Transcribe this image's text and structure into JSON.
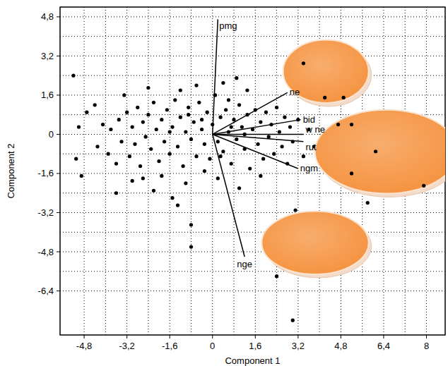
{
  "chart_data": {
    "type": "scatter",
    "x_label": "Component 1",
    "y_label": "Component 2",
    "xlim": [
      -5.7,
      8.7
    ],
    "ylim": [
      -8.2,
      5.2
    ],
    "xticks": [
      {
        "value": -4.8,
        "label": "-4,8"
      },
      {
        "value": -3.2,
        "label": "-3,2"
      },
      {
        "value": -1.6,
        "label": "-1,6"
      },
      0,
      {
        "value": 1.6,
        "label": "1,6"
      },
      {
        "value": 3.2,
        "label": "3,2"
      },
      {
        "value": 4.8,
        "label": "4,8"
      },
      {
        "value": 6.4,
        "label": "6,4"
      },
      8
    ],
    "yticks": [
      {
        "value": 4.8,
        "label": "4,8"
      },
      {
        "value": 3.2,
        "label": "3,2"
      },
      {
        "value": 1.6,
        "label": "1,6"
      },
      0,
      {
        "value": -1.6,
        "label": "-1,6"
      },
      {
        "value": -3.2,
        "label": "-3,2"
      },
      {
        "value": -4.8,
        "label": "-4,8"
      },
      {
        "value": -6.4,
        "label": "-6,4"
      }
    ],
    "grid": true,
    "color": "#000000",
    "marker": "circle",
    "x": [
      -5.2,
      -4.7,
      -3.3,
      -5.1,
      -5.0,
      -4.9,
      3.4,
      4.2,
      4.9,
      5.2,
      4.7,
      6.1,
      5.2,
      5.8,
      7.9,
      3.1,
      2.4,
      3.0,
      -0.8,
      -0.8,
      -1.3,
      -3.0,
      -2.6,
      0.4,
      -4.3,
      -4.1,
      -3.9,
      -3.8,
      -3.6,
      -3.5,
      -3.4,
      -3.2,
      -3.1,
      -3.0,
      -2.9,
      -2.8,
      -2.7,
      -2.6,
      -2.5,
      -2.4,
      -2.3,
      -2.2,
      -2.1,
      -2.0,
      -1.9,
      -1.8,
      -1.7,
      -1.6,
      -1.5,
      -1.4,
      -1.3,
      -1.2,
      -1.1,
      -1.0,
      -0.9,
      -0.8,
      -0.7,
      -0.6,
      -0.5,
      -0.4,
      -0.3,
      -0.2,
      -0.1,
      0.0,
      0.1,
      0.2,
      0.3,
      0.4,
      0.5,
      0.6,
      0.7,
      0.8,
      0.9,
      1.0,
      1.1,
      1.2,
      1.3,
      1.4,
      1.5,
      1.6,
      1.7,
      1.8,
      1.9,
      2.0,
      2.1,
      2.2,
      2.3,
      2.4,
      2.5,
      2.6,
      2.7,
      2.8,
      2.9,
      3.0,
      3.2,
      3.4,
      3.6,
      3.8,
      -1.9,
      -1.0,
      0.2,
      1.0,
      -2.4,
      -0.6,
      1.3,
      -3.6,
      -4.4,
      -1.5,
      0.6,
      -0.3,
      1.8,
      -1.2,
      -2.2,
      0.9,
      -0.9,
      0.3,
      -0.4,
      0.7,
      -1.6,
      1.2
    ],
    "values": [
      2.4,
      0.9,
      1.6,
      -1.0,
      0.3,
      -1.7,
      2.9,
      1.5,
      1.5,
      0.4,
      0.4,
      -0.7,
      -1.6,
      -2.8,
      -2.1,
      -3.1,
      -5.8,
      -7.6,
      -3.7,
      -4.6,
      -2.9,
      -1.9,
      -1.8,
      2.1,
      -0.5,
      0.4,
      -0.8,
      0.2,
      -1.2,
      0.6,
      -0.3,
      0.9,
      -0.9,
      0.3,
      -0.4,
      1.1,
      -1.3,
      0.5,
      -0.1,
      0.8,
      -0.6,
      1.3,
      0.2,
      -1.1,
      0.6,
      -0.3,
      1.0,
      -0.8,
      0.3,
      1.4,
      -0.5,
      0.7,
      -1.3,
      0.1,
      1.1,
      -0.2,
      0.5,
      -0.9,
      1.3,
      0.2,
      -0.4,
      0.9,
      -1.0,
      0.4,
      1.6,
      -0.3,
      0.7,
      -0.7,
      1.0,
      0.1,
      -1.2,
      0.6,
      -0.2,
      1.2,
      0.3,
      -0.6,
      0.8,
      -1.4,
      0.2,
      1.0,
      -0.4,
      0.5,
      -1.0,
      0.9,
      -0.1,
      0.4,
      -0.8,
      1.1,
      0.1,
      -0.5,
      0.7,
      -1.2,
      0.3,
      -0.3,
      0.6,
      -0.9,
      0.2,
      -0.5,
      -1.7,
      -2.0,
      -1.8,
      -2.2,
      1.9,
      2.0,
      1.8,
      -2.4,
      1.2,
      -2.6,
      1.4,
      -1.5,
      -1.7,
      1.8,
      -2.3,
      2.3,
      0.8,
      -0.9,
      0.6,
      0.3,
      0.1,
      0.0
    ],
    "vectors": [
      {
        "label": "pmg",
        "x": 0.2,
        "y": 4.7
      },
      {
        "label": "ne",
        "x": 2.8,
        "y": 1.7
      },
      {
        "label": "bid",
        "x": 3.3,
        "y": 0.6
      },
      {
        "label": "w ne",
        "x": 3.4,
        "y": 0.0
      },
      {
        "label": "rut",
        "x": 3.4,
        "y": -0.3
      },
      {
        "label": "ngm",
        "x": 3.2,
        "y": -1.4
      },
      {
        "label": "nge",
        "x": 1.2,
        "y": -5.0
      }
    ],
    "ellipses": [
      {
        "x": 4.24,
        "y": 2.57,
        "rx": 1.6,
        "ry": 1.29,
        "color": "#f5923e"
      },
      {
        "x": 6.5,
        "y": -0.71,
        "rx": 2.67,
        "ry": 1.71,
        "color": "#f5923e"
      },
      {
        "x": 3.84,
        "y": -4.43,
        "rx": 2.0,
        "ry": 1.29,
        "color": "#f5923e"
      }
    ]
  }
}
